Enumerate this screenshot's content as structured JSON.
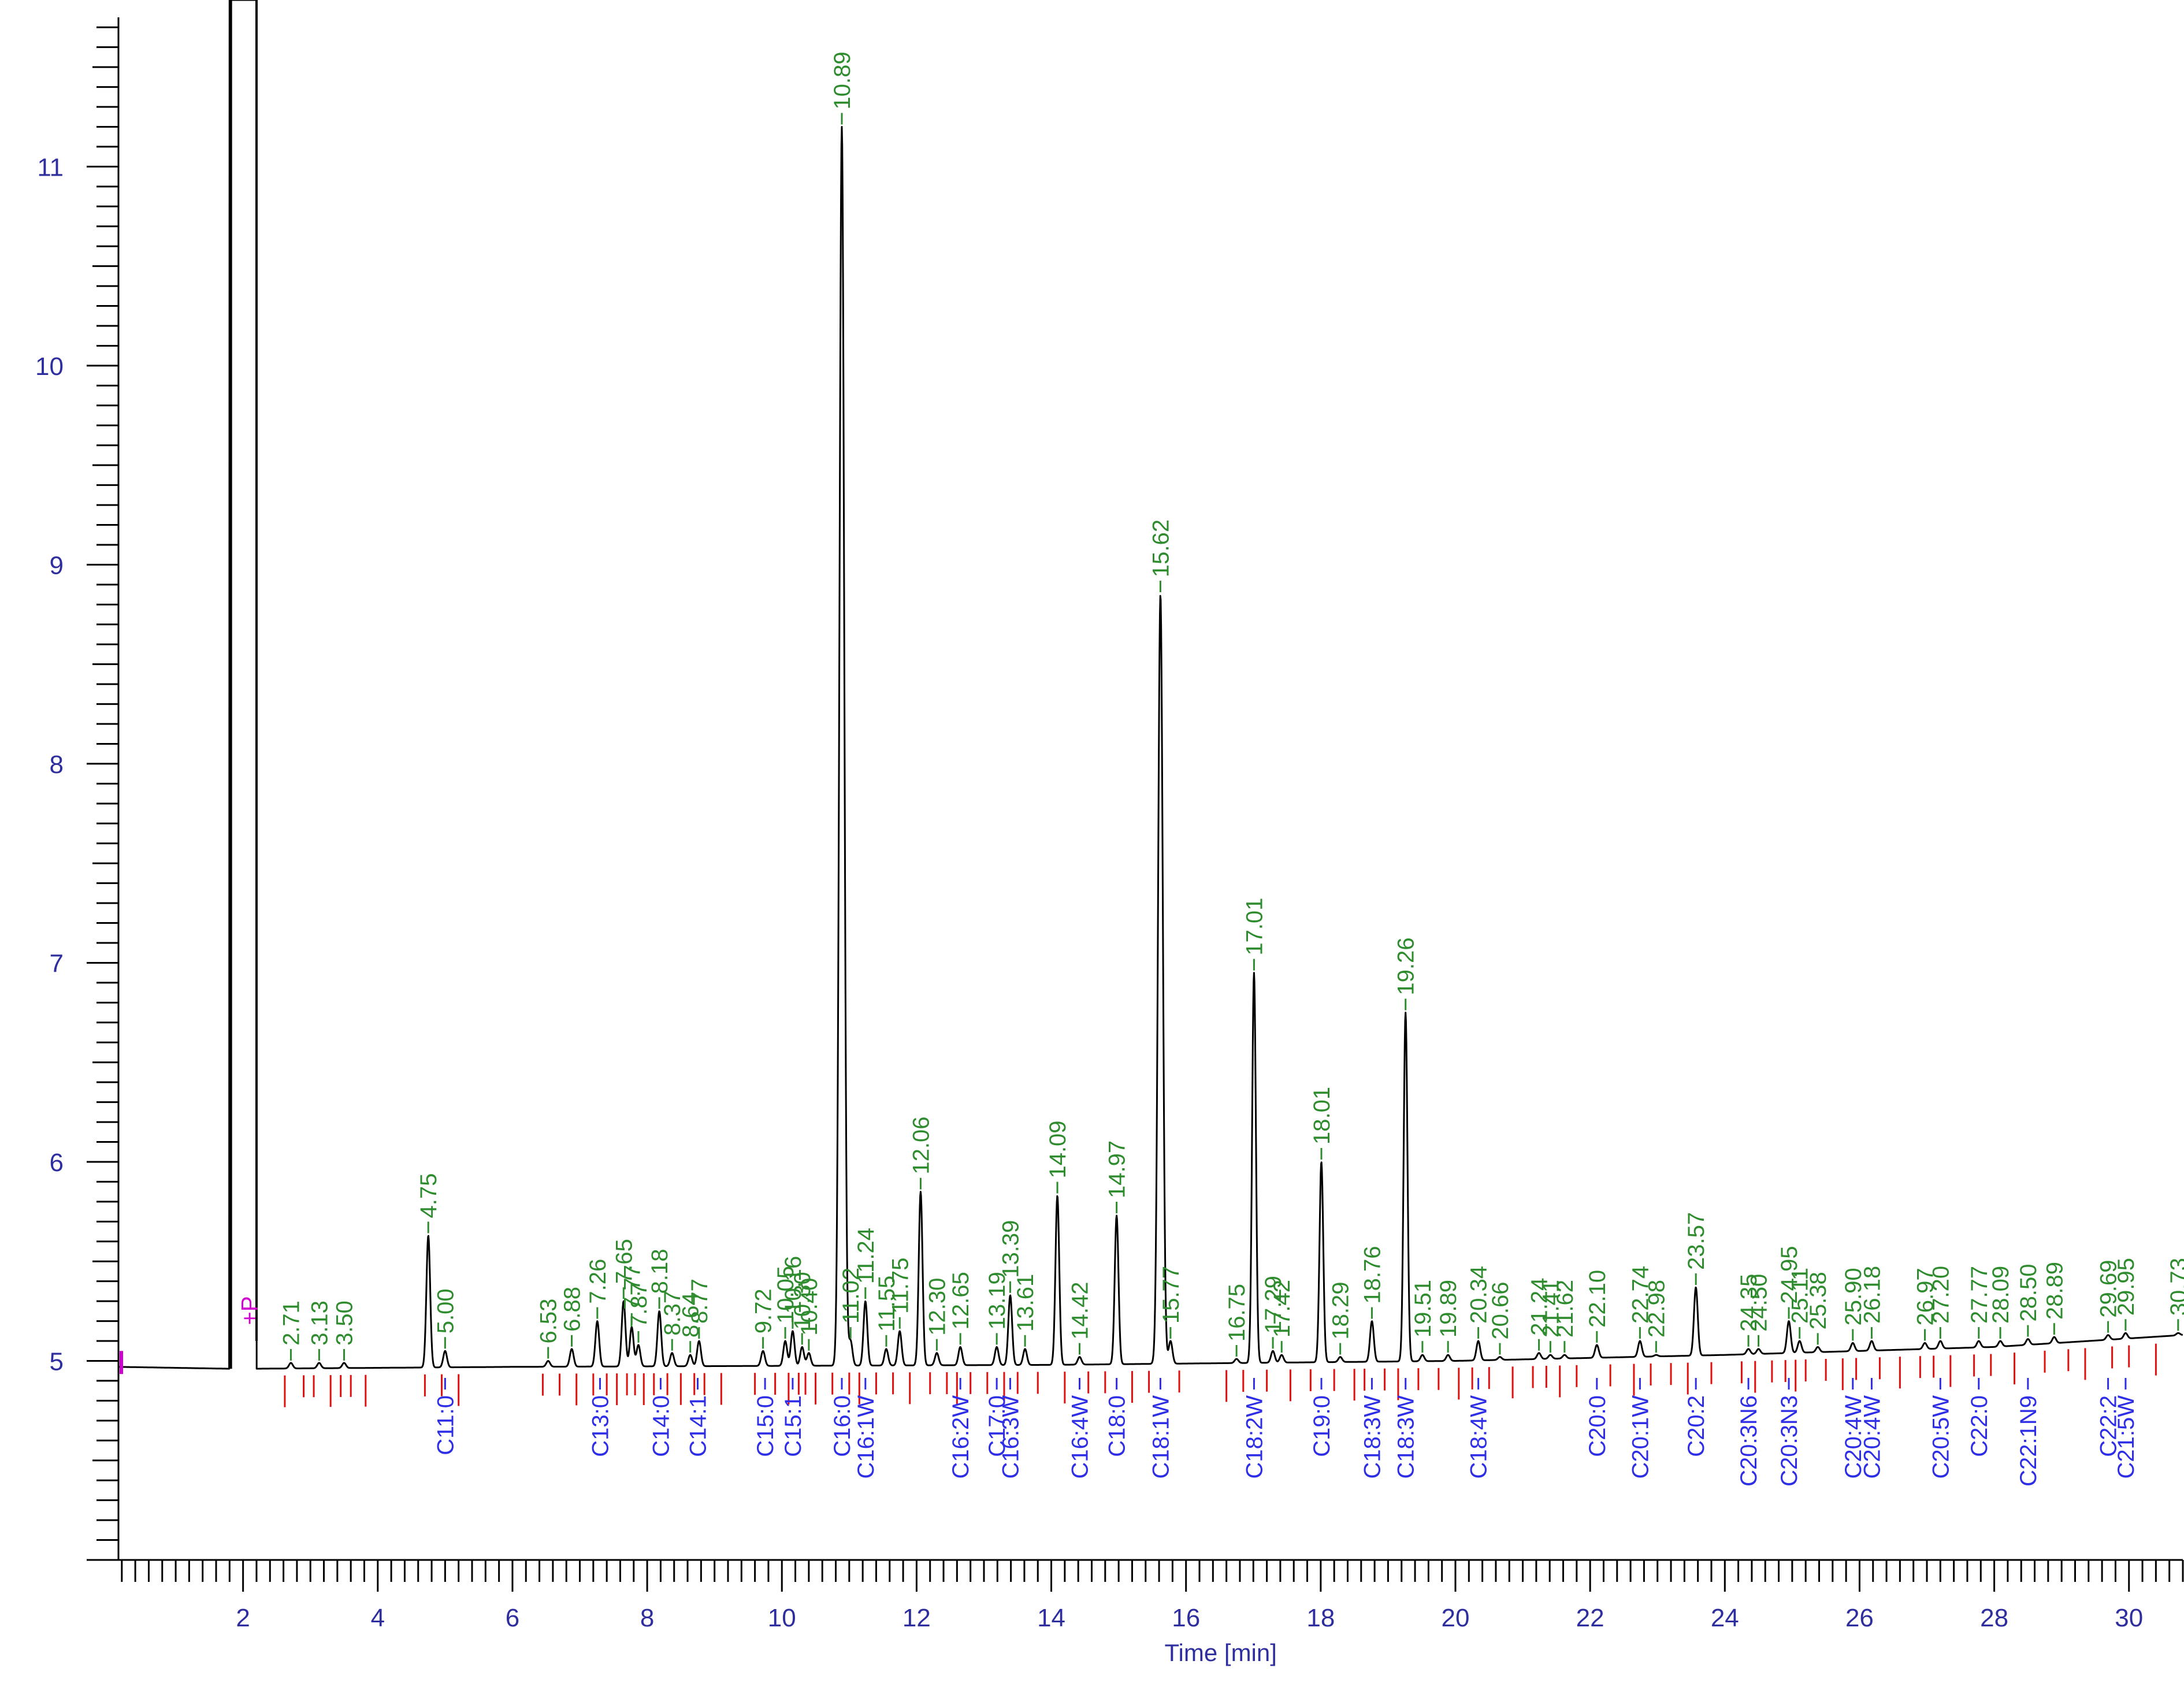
{
  "chart_data": {
    "type": "line",
    "xlabel": "Time [min]",
    "xlim": [
      0.15,
      30.8
    ],
    "ylim": [
      4.0,
      11.75
    ],
    "x_ticks": [
      2,
      4,
      6,
      8,
      10,
      12,
      14,
      16,
      18,
      20,
      22,
      24,
      26,
      28,
      30
    ],
    "y_ticks": [
      5,
      6,
      7,
      8,
      9,
      10,
      11
    ],
    "grid": false,
    "legend": "none",
    "colors": {
      "trace": "#000000",
      "axes": "#000000",
      "tick_labels": "#2e2e9e",
      "peak_labels": "#2e8b2e",
      "component_labels": "#2e2ee6",
      "baseline_marks": "#e01010",
      "injection_marker": "#d000d0"
    },
    "solvent_peak": {
      "start": 1.8,
      "end": 2.2
    },
    "injection_marker": {
      "x": 2.3,
      "label": "+P"
    },
    "baseline": [
      [
        0.15,
        4.97
      ],
      [
        1.9,
        4.96
      ],
      [
        6,
        4.97
      ],
      [
        14,
        4.98
      ],
      [
        20,
        5.0
      ],
      [
        24,
        5.03
      ],
      [
        28,
        5.07
      ],
      [
        30.8,
        5.13
      ]
    ],
    "peaks": [
      {
        "rt": "2.71",
        "x": 2.71,
        "y": 4.99
      },
      {
        "rt": "3.13",
        "x": 3.13,
        "y": 4.99
      },
      {
        "rt": "3.50",
        "x": 3.5,
        "y": 4.99
      },
      {
        "rt": "4.75",
        "x": 4.75,
        "y": 5.63
      },
      {
        "rt": "5.00",
        "x": 5.0,
        "y": 5.05
      },
      {
        "rt": "6.53",
        "x": 6.53,
        "y": 5.0
      },
      {
        "rt": "6.88",
        "x": 6.88,
        "y": 5.06
      },
      {
        "rt": "7.26",
        "x": 7.26,
        "y": 5.2
      },
      {
        "rt": "7.65",
        "x": 7.65,
        "y": 5.3
      },
      {
        "rt": "7.77",
        "x": 7.77,
        "y": 5.17
      },
      {
        "rt": "7.87",
        "x": 7.87,
        "y": 5.08
      },
      {
        "rt": "8.18",
        "x": 8.18,
        "y": 5.25
      },
      {
        "rt": "8.37",
        "x": 8.37,
        "y": 5.04
      },
      {
        "rt": "8.64",
        "x": 8.64,
        "y": 5.03
      },
      {
        "rt": "8.77",
        "x": 8.77,
        "y": 5.1
      },
      {
        "rt": "9.72",
        "x": 9.72,
        "y": 5.05
      },
      {
        "rt": "10.05",
        "x": 10.05,
        "y": 5.1
      },
      {
        "rt": "10.16",
        "x": 10.16,
        "y": 5.15
      },
      {
        "rt": "10.30",
        "x": 10.3,
        "y": 5.07
      },
      {
        "rt": "10.40",
        "x": 10.4,
        "y": 5.04
      },
      {
        "rt": "10.89",
        "x": 10.89,
        "y": 11.2
      },
      {
        "rt": "11.02",
        "x": 11.02,
        "y": 5.1
      },
      {
        "rt": "11.24",
        "x": 11.24,
        "y": 5.3
      },
      {
        "rt": "11.55",
        "x": 11.55,
        "y": 5.06
      },
      {
        "rt": "11.75",
        "x": 11.75,
        "y": 5.15
      },
      {
        "rt": "12.06",
        "x": 12.06,
        "y": 5.85
      },
      {
        "rt": "12.30",
        "x": 12.3,
        "y": 5.04
      },
      {
        "rt": "12.65",
        "x": 12.65,
        "y": 5.07
      },
      {
        "rt": "13.19",
        "x": 13.19,
        "y": 5.07
      },
      {
        "rt": "13.39",
        "x": 13.39,
        "y": 5.33
      },
      {
        "rt": "13.61",
        "x": 13.61,
        "y": 5.06
      },
      {
        "rt": "14.09",
        "x": 14.09,
        "y": 5.83
      },
      {
        "rt": "14.42",
        "x": 14.42,
        "y": 5.02
      },
      {
        "rt": "14.97",
        "x": 14.97,
        "y": 5.73
      },
      {
        "rt": "15.62",
        "x": 15.62,
        "y": 8.85
      },
      {
        "rt": "15.77",
        "x": 15.77,
        "y": 5.1
      },
      {
        "rt": "16.75",
        "x": 16.75,
        "y": 5.01
      },
      {
        "rt": "17.01",
        "x": 17.01,
        "y": 6.95
      },
      {
        "rt": "17.29",
        "x": 17.29,
        "y": 5.05
      },
      {
        "rt": "17.42",
        "x": 17.42,
        "y": 5.03
      },
      {
        "rt": "18.01",
        "x": 18.01,
        "y": 6.0
      },
      {
        "rt": "18.29",
        "x": 18.29,
        "y": 5.02
      },
      {
        "rt": "18.76",
        "x": 18.76,
        "y": 5.2
      },
      {
        "rt": "19.26",
        "x": 19.26,
        "y": 6.75
      },
      {
        "rt": "19.51",
        "x": 19.51,
        "y": 5.03
      },
      {
        "rt": "19.89",
        "x": 19.89,
        "y": 5.03
      },
      {
        "rt": "20.34",
        "x": 20.34,
        "y": 5.1
      },
      {
        "rt": "20.66",
        "x": 20.66,
        "y": 5.02
      },
      {
        "rt": "21.24",
        "x": 21.24,
        "y": 5.04
      },
      {
        "rt": "21.41",
        "x": 21.41,
        "y": 5.03
      },
      {
        "rt": "21.62",
        "x": 21.62,
        "y": 5.03
      },
      {
        "rt": "22.10",
        "x": 22.1,
        "y": 5.08
      },
      {
        "rt": "22.74",
        "x": 22.74,
        "y": 5.1
      },
      {
        "rt": "22.98",
        "x": 22.98,
        "y": 5.03
      },
      {
        "rt": "23.57",
        "x": 23.57,
        "y": 5.37
      },
      {
        "rt": "24.35",
        "x": 24.35,
        "y": 5.06
      },
      {
        "rt": "24.50",
        "x": 24.5,
        "y": 5.06
      },
      {
        "rt": "24.95",
        "x": 24.95,
        "y": 5.2
      },
      {
        "rt": "25.11",
        "x": 25.11,
        "y": 5.1
      },
      {
        "rt": "25.38",
        "x": 25.38,
        "y": 5.07
      },
      {
        "rt": "25.90",
        "x": 25.9,
        "y": 5.09
      },
      {
        "rt": "26.18",
        "x": 26.18,
        "y": 5.1
      },
      {
        "rt": "26.97",
        "x": 26.97,
        "y": 5.09
      },
      {
        "rt": "27.20",
        "x": 27.2,
        "y": 5.1
      },
      {
        "rt": "27.77",
        "x": 27.77,
        "y": 5.1
      },
      {
        "rt": "28.09",
        "x": 28.09,
        "y": 5.1
      },
      {
        "rt": "28.50",
        "x": 28.5,
        "y": 5.11
      },
      {
        "rt": "28.89",
        "x": 28.89,
        "y": 5.12
      },
      {
        "rt": "29.69",
        "x": 29.69,
        "y": 5.13
      },
      {
        "rt": "29.95",
        "x": 29.95,
        "y": 5.14
      },
      {
        "rt": "30.73",
        "x": 30.73,
        "y": 5.14
      }
    ],
    "components": [
      {
        "name": "C11:0",
        "x": 5.0
      },
      {
        "name": "C13:0",
        "x": 7.3
      },
      {
        "name": "C14:0",
        "x": 8.2
      },
      {
        "name": "C14:1",
        "x": 8.75
      },
      {
        "name": "C15:0",
        "x": 9.75
      },
      {
        "name": "C15:1",
        "x": 10.16
      },
      {
        "name": "C16:0",
        "x": 10.89
      },
      {
        "name": "C16:1W",
        "x": 11.24
      },
      {
        "name": "C16:2W",
        "x": 12.65
      },
      {
        "name": "C17:0",
        "x": 13.19
      },
      {
        "name": "C16:3W",
        "x": 13.39
      },
      {
        "name": "C16:4W",
        "x": 14.42
      },
      {
        "name": "C18:0",
        "x": 14.97
      },
      {
        "name": "C18:1W",
        "x": 15.62
      },
      {
        "name": "C18:2W",
        "x": 17.01
      },
      {
        "name": "C19:0",
        "x": 18.01
      },
      {
        "name": "C18:3W",
        "x": 18.76
      },
      {
        "name": "C18:3W",
        "x": 19.26
      },
      {
        "name": "C18:4W",
        "x": 20.34
      },
      {
        "name": "C20:0",
        "x": 22.1
      },
      {
        "name": "C20:1W",
        "x": 22.74
      },
      {
        "name": "C20:2",
        "x": 23.57
      },
      {
        "name": "C20:3N6",
        "x": 24.35
      },
      {
        "name": "C20:3N3",
        "x": 24.95
      },
      {
        "name": "C20:4W",
        "x": 25.9
      },
      {
        "name": "C20:4W",
        "x": 26.18
      },
      {
        "name": "C20:5W",
        "x": 27.2
      },
      {
        "name": "C22:0",
        "x": 27.77
      },
      {
        "name": "C22:1N9",
        "x": 28.5
      },
      {
        "name": "C22:2",
        "x": 29.69
      },
      {
        "name": "C21:5W",
        "x": 29.95
      }
    ],
    "baseline_marks": [
      2.62,
      2.9,
      3.05,
      3.3,
      3.45,
      3.6,
      3.82,
      4.7,
      4.95,
      5.2,
      6.45,
      6.7,
      6.95,
      7.2,
      7.4,
      7.55,
      7.7,
      7.82,
      7.95,
      8.1,
      8.3,
      8.5,
      8.7,
      8.85,
      9.1,
      9.6,
      9.9,
      10.1,
      10.25,
      10.35,
      10.5,
      10.75,
      11.0,
      11.15,
      11.4,
      11.65,
      11.9,
      12.2,
      12.45,
      12.6,
      12.8,
      13.05,
      13.3,
      13.5,
      13.8,
      14.2,
      14.55,
      14.8,
      15.2,
      15.45,
      15.9,
      16.6,
      16.85,
      17.2,
      17.55,
      17.85,
      18.2,
      18.5,
      18.65,
      18.95,
      19.15,
      19.45,
      19.75,
      20.05,
      20.25,
      20.5,
      20.85,
      21.15,
      21.35,
      21.55,
      21.8,
      22.3,
      22.65,
      22.9,
      23.2,
      23.45,
      23.8,
      24.25,
      24.45,
      24.7,
      24.9,
      25.05,
      25.2,
      25.5,
      25.75,
      25.95,
      26.3,
      26.6,
      26.9,
      27.1,
      27.35,
      27.7,
      27.95,
      28.3,
      28.75,
      29.1,
      29.35,
      29.75,
      30.0,
      30.4
    ]
  }
}
